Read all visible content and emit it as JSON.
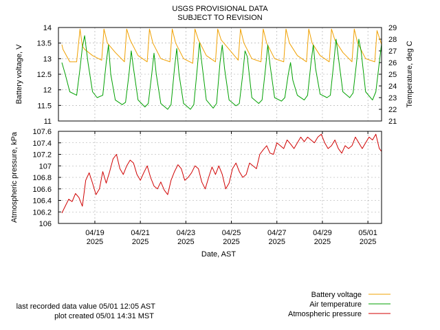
{
  "title": "USGS PROVISIONAL DATA",
  "subtitle": "SUBJECT TO REVISION",
  "footer": {
    "last_recorded": "last recorded data value 05/01 12:05 AST",
    "plot_created": "plot created 05/01 14:31 MST"
  },
  "xaxis": {
    "label": "Date, AST",
    "range_days": [
      0,
      14.2
    ],
    "ticks": [
      {
        "day": 1.6,
        "date": "04/19",
        "year": "2025"
      },
      {
        "day": 3.6,
        "date": "04/21",
        "year": "2025"
      },
      {
        "day": 5.6,
        "date": "04/23",
        "year": "2025"
      },
      {
        "day": 7.6,
        "date": "04/25",
        "year": "2025"
      },
      {
        "day": 9.6,
        "date": "04/27",
        "year": "2025"
      },
      {
        "day": 11.6,
        "date": "04/29",
        "year": "2025"
      },
      {
        "day": 13.6,
        "date": "05/01",
        "year": "2025"
      }
    ]
  },
  "legend": [
    {
      "name": "Battery voltage",
      "color": "#f0a000"
    },
    {
      "name": "Air temperature",
      "color": "#00a000"
    },
    {
      "name": "Atmospheric pressure",
      "color": "#d00000"
    }
  ],
  "chart_data": [
    {
      "type": "line",
      "panel": "top",
      "ylabel_left": "Battery voltage, V",
      "ylabel_right": "Temperature, deg C",
      "ylim_left": [
        11,
        14
      ],
      "yticks_left": [
        "11",
        "11.5",
        "12",
        "12.5",
        "13",
        "13.5",
        "14"
      ],
      "ylim_right": [
        21,
        29
      ],
      "yticks_right": [
        "21",
        "22",
        "23",
        "24",
        "25",
        "26",
        "27",
        "28",
        "29"
      ],
      "grid": true,
      "series": [
        {
          "name": "Battery voltage",
          "axis": "left",
          "color": "#f0a000",
          "x": [
            0.15,
            0.2,
            0.5,
            0.8,
            0.95,
            1.05,
            1.15,
            1.5,
            1.9,
            2.0,
            2.15,
            2.5,
            2.9,
            3.0,
            3.15,
            3.5,
            3.9,
            4.0,
            4.15,
            4.5,
            4.9,
            5.0,
            5.15,
            5.5,
            5.9,
            6.0,
            6.15,
            6.5,
            6.9,
            7.0,
            7.15,
            7.5,
            7.9,
            8.0,
            8.15,
            8.5,
            8.9,
            9.0,
            9.15,
            9.5,
            9.9,
            10.0,
            10.15,
            10.5,
            10.9,
            11.0,
            11.15,
            11.5,
            11.9,
            12.0,
            12.15,
            12.5,
            12.9,
            13.0,
            13.15,
            13.5,
            13.9,
            14.0,
            14.2
          ],
          "y": [
            13.45,
            13.3,
            12.9,
            12.9,
            13.95,
            13.4,
            13.3,
            13.1,
            12.95,
            13.95,
            13.5,
            13.2,
            12.9,
            13.95,
            13.6,
            13.1,
            12.9,
            13.95,
            13.5,
            13.0,
            12.9,
            13.95,
            13.5,
            13.0,
            12.85,
            13.95,
            13.6,
            13.1,
            12.9,
            13.95,
            13.6,
            13.3,
            12.95,
            13.95,
            13.5,
            13.0,
            12.9,
            13.95,
            13.5,
            13.0,
            12.9,
            13.95,
            13.5,
            13.1,
            12.9,
            13.95,
            13.5,
            13.1,
            12.9,
            13.95,
            13.6,
            13.2,
            12.9,
            13.95,
            13.5,
            13.0,
            12.9,
            13.9,
            13.45
          ]
        },
        {
          "name": "Air temperature",
          "axis": "right",
          "color": "#00a000",
          "x": [
            0.15,
            0.3,
            0.5,
            0.8,
            0.95,
            1.05,
            1.15,
            1.3,
            1.5,
            1.7,
            1.95,
            2.1,
            2.2,
            2.3,
            2.5,
            2.8,
            2.95,
            3.1,
            3.2,
            3.3,
            3.5,
            3.8,
            3.95,
            4.1,
            4.2,
            4.3,
            4.5,
            4.8,
            4.95,
            5.1,
            5.2,
            5.3,
            5.5,
            5.8,
            5.95,
            6.1,
            6.2,
            6.3,
            6.5,
            6.8,
            6.95,
            7.1,
            7.2,
            7.3,
            7.5,
            7.8,
            7.95,
            8.1,
            8.2,
            8.3,
            8.5,
            8.8,
            8.95,
            9.1,
            9.2,
            9.3,
            9.5,
            9.8,
            9.95,
            10.1,
            10.2,
            10.3,
            10.5,
            10.8,
            10.95,
            11.1,
            11.2,
            11.3,
            11.5,
            11.8,
            11.95,
            12.1,
            12.2,
            12.3,
            12.5,
            12.8,
            12.95,
            13.1,
            13.2,
            13.3,
            13.5,
            13.8,
            13.95,
            14.1,
            14.2
          ],
          "y": [
            26,
            25,
            23.5,
            23.2,
            25.5,
            27.3,
            28.3,
            26,
            23.5,
            23,
            23.2,
            26,
            27.5,
            25,
            22.8,
            22.4,
            22.6,
            25,
            27,
            25.5,
            22.8,
            22.2,
            22.5,
            25,
            26.8,
            25,
            22.5,
            22,
            22.4,
            25.5,
            27.2,
            25,
            22.5,
            22,
            22.4,
            25.5,
            27.7,
            26,
            22.8,
            22.1,
            22.5,
            26,
            27.5,
            25.5,
            22.8,
            22.3,
            22.5,
            25,
            27,
            26.5,
            23,
            22.5,
            22.8,
            25.5,
            27.5,
            25.8,
            23,
            22.7,
            23,
            25,
            26,
            24.5,
            23.2,
            22.8,
            23.2,
            26,
            27.5,
            25.5,
            23.3,
            23,
            23.2,
            26,
            28,
            26.5,
            23.5,
            23,
            23.4,
            26,
            28,
            27,
            23.5,
            22.8,
            23.5,
            26,
            27.6
          ]
        }
      ]
    },
    {
      "type": "line",
      "panel": "bottom",
      "ylabel": "Atmospheric pressure, kPa",
      "ylim": [
        106,
        107.6
      ],
      "yticks": [
        "106",
        "106.2",
        "106.4",
        "106.6",
        "106.8",
        "107",
        "107.2",
        "107.4",
        "107.6"
      ],
      "grid": true,
      "series": [
        {
          "name": "Atmospheric pressure",
          "color": "#d00000",
          "x": [
            0.15,
            0.3,
            0.45,
            0.6,
            0.75,
            0.9,
            1.05,
            1.2,
            1.35,
            1.5,
            1.65,
            1.8,
            1.95,
            2.1,
            2.25,
            2.4,
            2.55,
            2.7,
            2.85,
            3.0,
            3.15,
            3.3,
            3.45,
            3.6,
            3.75,
            3.9,
            4.05,
            4.2,
            4.35,
            4.5,
            4.65,
            4.8,
            4.95,
            5.1,
            5.25,
            5.4,
            5.55,
            5.7,
            5.85,
            6.0,
            6.15,
            6.3,
            6.45,
            6.6,
            6.75,
            6.9,
            7.05,
            7.2,
            7.35,
            7.5,
            7.65,
            7.8,
            7.95,
            8.1,
            8.25,
            8.4,
            8.55,
            8.7,
            8.85,
            9.0,
            9.15,
            9.3,
            9.45,
            9.6,
            9.75,
            9.9,
            10.05,
            10.2,
            10.35,
            10.5,
            10.65,
            10.8,
            10.95,
            11.1,
            11.25,
            11.4,
            11.55,
            11.7,
            11.85,
            12.0,
            12.15,
            12.3,
            12.45,
            12.6,
            12.75,
            12.9,
            13.05,
            13.2,
            13.35,
            13.5,
            13.65,
            13.8,
            13.95,
            14.1,
            14.2
          ],
          "y": [
            106.18,
            106.3,
            106.42,
            106.38,
            106.52,
            106.45,
            106.3,
            106.75,
            106.88,
            106.7,
            106.5,
            106.6,
            106.9,
            106.7,
            106.9,
            107.12,
            107.2,
            106.95,
            106.85,
            107.0,
            107.1,
            107.05,
            106.85,
            106.75,
            106.88,
            107.0,
            106.8,
            106.65,
            106.6,
            106.72,
            106.58,
            106.5,
            106.75,
            106.9,
            107.02,
            106.95,
            106.75,
            106.8,
            106.88,
            107.0,
            106.95,
            106.72,
            106.6,
            106.8,
            106.98,
            106.85,
            107.0,
            106.85,
            106.6,
            106.7,
            106.95,
            107.05,
            106.9,
            106.8,
            106.85,
            107.05,
            107.0,
            106.95,
            107.2,
            107.28,
            107.35,
            107.22,
            107.2,
            107.4,
            107.35,
            107.3,
            107.45,
            107.38,
            107.3,
            107.4,
            107.5,
            107.42,
            107.5,
            107.45,
            107.4,
            107.5,
            107.55,
            107.4,
            107.3,
            107.35,
            107.45,
            107.3,
            107.22,
            107.35,
            107.3,
            107.35,
            107.5,
            107.4,
            107.3,
            107.4,
            107.5,
            107.45,
            107.55,
            107.3,
            107.25
          ]
        }
      ]
    }
  ]
}
